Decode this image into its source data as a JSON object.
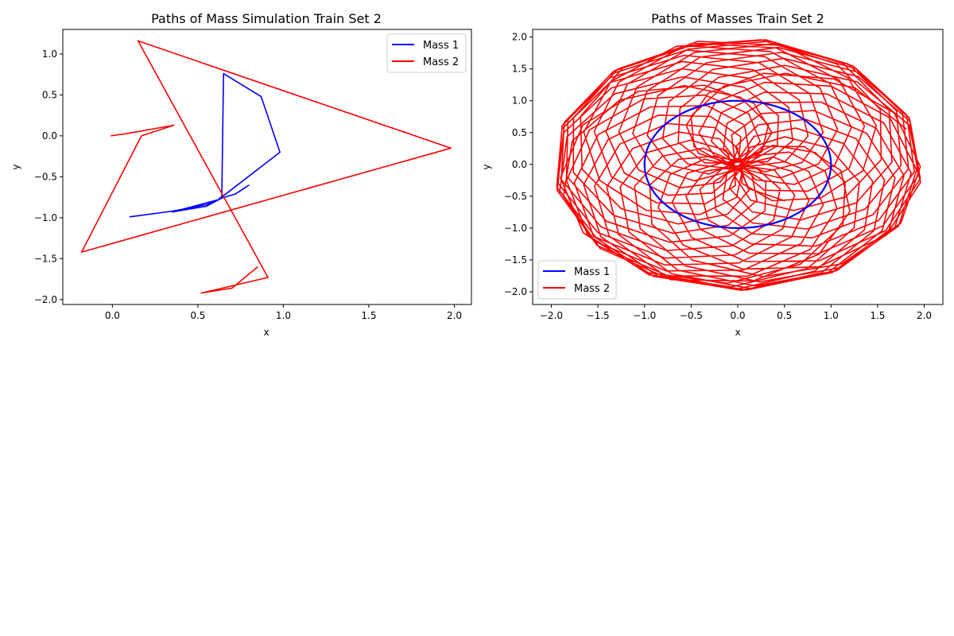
{
  "figure": {
    "background": "#ffffff"
  },
  "chart_data": [
    {
      "type": "line",
      "title": "Paths of Mass Simulation Train Set 2",
      "xlabel": "x",
      "ylabel": "y",
      "xlim": [
        -0.29,
        2.1
      ],
      "ylim": [
        -2.06,
        1.3
      ],
      "xticks": [
        0.0,
        0.5,
        1.0,
        1.5,
        2.0
      ],
      "xtick_labels": [
        "0.0",
        "0.5",
        "1.0",
        "1.5",
        "2.0"
      ],
      "yticks": [
        -2.0,
        -1.5,
        -1.0,
        -0.5,
        0.0,
        0.5,
        1.0
      ],
      "ytick_labels": [
        "−2.0",
        "−1.5",
        "−1.0",
        "−0.5",
        "0.0",
        "0.5",
        "1.0"
      ],
      "grid": false,
      "legend_position": "upper right",
      "series": [
        {
          "name": "Mass 1",
          "color": "#0000ff",
          "x": [
            0.1,
            0.35,
            0.55,
            0.62,
            0.64,
            0.65,
            0.87,
            0.98,
            0.62,
            0.35,
            0.55,
            0.64,
            0.72,
            0.8
          ],
          "y": [
            -0.99,
            -0.92,
            -0.84,
            -0.78,
            -0.74,
            0.76,
            0.48,
            -0.2,
            -0.78,
            -0.93,
            -0.86,
            -0.76,
            -0.71,
            -0.6
          ]
        },
        {
          "name": "Mass 2",
          "color": "#ff0000",
          "x": [
            -0.01,
            0.09,
            0.36,
            0.17,
            -0.18,
            1.98,
            0.15,
            0.91,
            0.52,
            0.58,
            0.7,
            0.85
          ],
          "y": [
            0.0,
            0.03,
            0.13,
            0.0,
            -1.42,
            -0.15,
            1.16,
            -1.73,
            -1.92,
            -1.9,
            -1.86,
            -1.6
          ]
        }
      ]
    },
    {
      "type": "line",
      "title": "Paths of Masses Train Set 2",
      "xlabel": "x",
      "ylabel": "y",
      "xlim": [
        -2.2,
        2.2
      ],
      "ylim": [
        -2.2,
        2.12
      ],
      "xticks": [
        -2.0,
        -1.5,
        -1.0,
        -0.5,
        0.0,
        0.5,
        1.0,
        1.5,
        2.0
      ],
      "xtick_labels": [
        "−2.0",
        "−1.5",
        "−1.0",
        "−0.5",
        "0.0",
        "0.5",
        "1.0",
        "1.5",
        "2.0"
      ],
      "yticks": [
        -2.0,
        -1.5,
        -1.0,
        -0.5,
        0.0,
        0.5,
        1.0,
        1.5,
        2.0
      ],
      "ytick_labels": [
        "−2.0",
        "−1.5",
        "−1.0",
        "−0.5",
        "0.0",
        "0.5",
        "1.0",
        "1.5",
        "2.0"
      ],
      "grid": false,
      "legend_position": "lower left",
      "series": [
        {
          "name": "Mass 1",
          "color": "#0000ff",
          "description_shape": "unit circle",
          "radius": 1.0
        },
        {
          "name": "Mass 2",
          "color": "#ff0000",
          "description_shape": "rosette curve (two-pendulum orbit)",
          "radius_outer": 1.95,
          "radius_inner": 1.0
        }
      ]
    }
  ]
}
